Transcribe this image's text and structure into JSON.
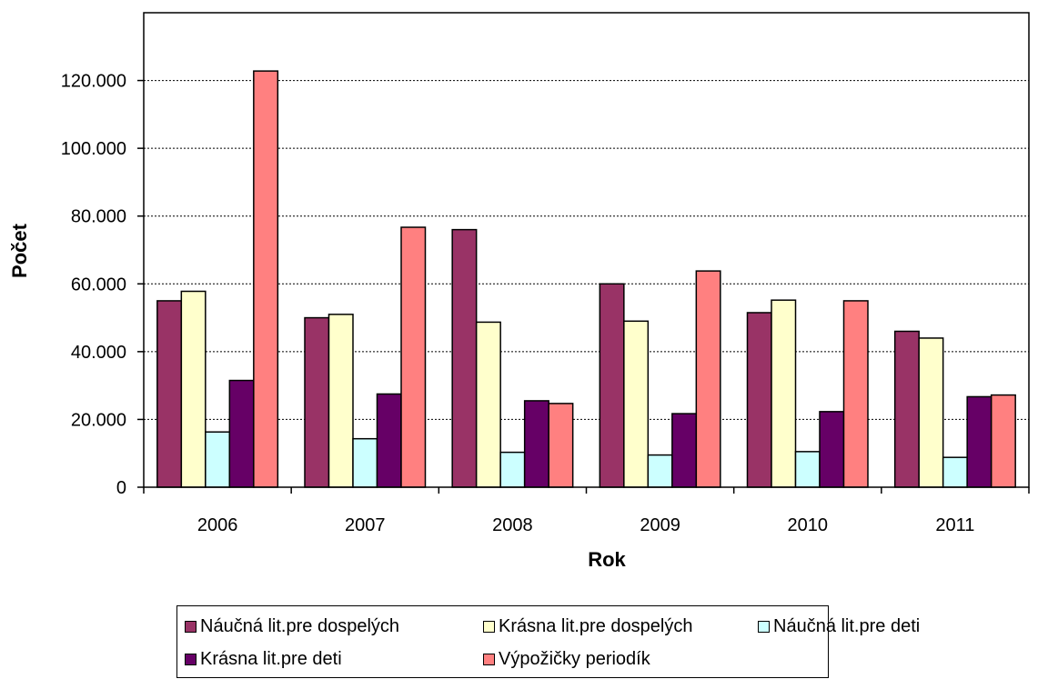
{
  "chart_data": {
    "type": "bar",
    "title": "",
    "xlabel": "Rok",
    "ylabel": "Počet",
    "categories": [
      "2006",
      "2007",
      "2008",
      "2009",
      "2010",
      "2011"
    ],
    "ylim": [
      0,
      140000
    ],
    "yticks": [
      0,
      20000,
      40000,
      60000,
      80000,
      100000,
      120000
    ],
    "ytick_labels": [
      "0",
      "20.000",
      "40.000",
      "60.000",
      "80.000",
      "100.000",
      "120.000"
    ],
    "grid": true,
    "legend_position": "bottom",
    "series": [
      {
        "name": "Náučná lit.pre dospelých",
        "color": "#993366",
        "values": [
          55000,
          50000,
          76000,
          60000,
          51500,
          46000
        ]
      },
      {
        "name": "Krásna lit.pre dospelých",
        "color": "#FFFFCC",
        "values": [
          57800,
          51000,
          48700,
          49000,
          55200,
          44000
        ]
      },
      {
        "name": "Náučná lit.pre deti",
        "color": "#CCFFFF",
        "values": [
          16300,
          14300,
          10300,
          9500,
          10500,
          8800
        ]
      },
      {
        "name": "Krásna lit.pre deti",
        "color": "#660066",
        "values": [
          31500,
          27500,
          25500,
          21700,
          22300,
          26700
        ]
      },
      {
        "name": "Výpožičky periodík",
        "color": "#FF8080",
        "values": [
          122800,
          76700,
          24700,
          63800,
          55000,
          27200
        ]
      }
    ]
  }
}
